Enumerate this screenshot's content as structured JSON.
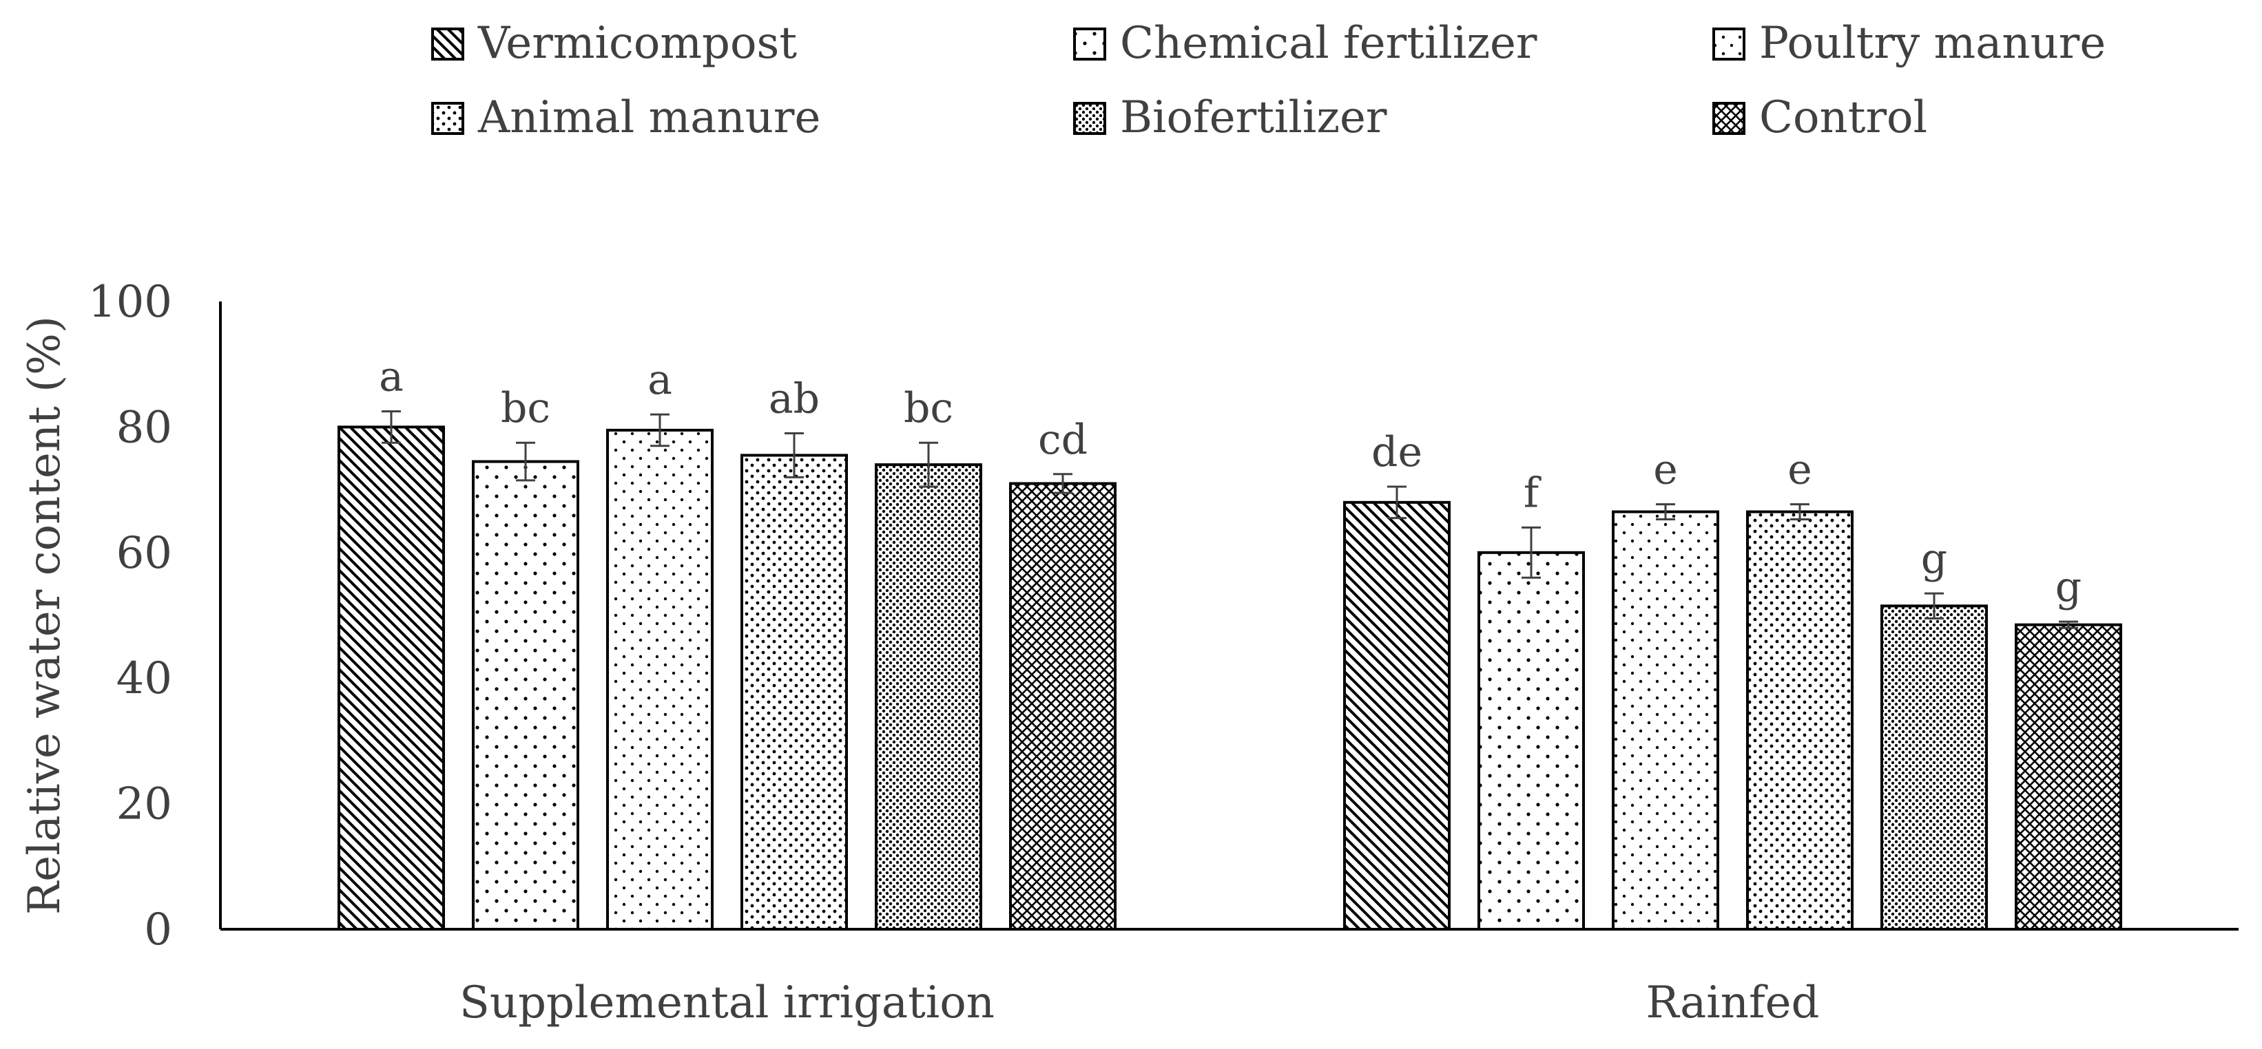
{
  "chart_data": {
    "type": "bar",
    "ylabel": "Relative water content (%)",
    "ylim": [
      0,
      100
    ],
    "yticks": [
      0,
      20,
      40,
      60,
      80,
      100
    ],
    "categories": [
      "Supplemental irrigation",
      "Rainfed"
    ],
    "legend_placement": "top",
    "series": [
      {
        "name": "Vermicompost",
        "pattern": "diagonal-hatch",
        "values": [
          80,
          68
        ],
        "errors": [
          2.5,
          2.5
        ],
        "labels": [
          "a",
          "de"
        ]
      },
      {
        "name": "Chemical fertilizer",
        "pattern": "sparse-dots",
        "values": [
          74.5,
          60
        ],
        "errors": [
          3,
          4
        ],
        "labels": [
          "bc",
          "f"
        ]
      },
      {
        "name": "Poultry manure",
        "pattern": "fine-sparse-dots",
        "values": [
          79.5,
          66.5
        ],
        "errors": [
          2.5,
          1.2
        ],
        "labels": [
          "a",
          "e"
        ]
      },
      {
        "name": "Animal manure",
        "pattern": "dense-dots",
        "values": [
          75.5,
          66.5
        ],
        "errors": [
          3.5,
          1.2
        ],
        "labels": [
          "ab",
          "e"
        ]
      },
      {
        "name": "Biofertilizer",
        "pattern": "very-dense-dots",
        "values": [
          74,
          51.5
        ],
        "errors": [
          3.5,
          2
        ],
        "labels": [
          "bc",
          "g"
        ]
      },
      {
        "name": "Control",
        "pattern": "crosshatch",
        "values": [
          71,
          48.5
        ],
        "errors": [
          1.5,
          0.5
        ],
        "labels": [
          "cd",
          "g"
        ]
      }
    ],
    "colors": {
      "axis": "#000000",
      "text": "#404040",
      "bar_stroke": "#000000",
      "fill": "#ffffff"
    }
  }
}
